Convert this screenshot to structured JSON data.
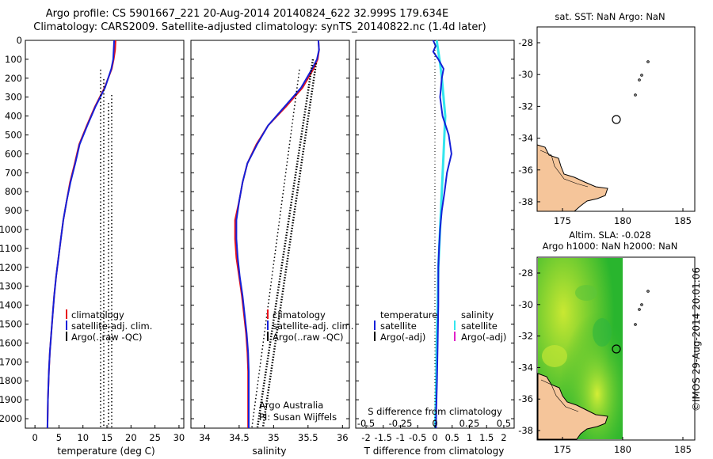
{
  "header": {
    "line1": "Argo profile: CS 5901667_221 20-Aug-2014 20140824_622 32.999S 179.634E",
    "line2": "Climatology: CARS2009. Satellite-adjusted climatology: synTS_20140822.nc (1.4d later)"
  },
  "colors": {
    "climatology": "#e8121b",
    "satellite": "#1520d8",
    "argo": "#000000",
    "sat_salinity": "#33e6ee",
    "argo_salinity_adj": "#e020c8",
    "land": "#f5c59a"
  },
  "y_axis": {
    "ticks": [
      "0",
      "100",
      "200",
      "300",
      "400",
      "500",
      "600",
      "700",
      "800",
      "900",
      "1000",
      "1100",
      "1200",
      "1300",
      "1400",
      "1500",
      "1600",
      "1700",
      "1800",
      "1900",
      "2000"
    ],
    "range": [
      0,
      2050
    ]
  },
  "panel1": {
    "xlabel": "temperature (deg C)",
    "xticks": [
      "0",
      "5",
      "10",
      "15",
      "20",
      "25",
      "30"
    ],
    "legend": [
      "climatology",
      "satellite-adj. clim.",
      "Argo(..raw -QC)"
    ]
  },
  "panel2": {
    "xlabel": "salinity",
    "xticks": [
      "34",
      "34.5",
      "35",
      "35.5",
      "36"
    ],
    "legend": [
      "climatology",
      "satellite-adj. clim.",
      "Argo(..raw -QC)"
    ],
    "credit1": "Argo Australia",
    "credit2": "PI: Susan Wijffels"
  },
  "panel3": {
    "xlabel": "T difference from climatology",
    "xticks": [
      "-2",
      "-1.5",
      "-1",
      "-0.5",
      "0",
      "0.5",
      "1",
      "1.5",
      "2"
    ],
    "top_label": "S difference from climatology",
    "top_ticks": [
      "-0.5",
      "-0.25",
      "0",
      "0.25",
      "0.5"
    ],
    "legend_t_title": "temperature",
    "legend_t": [
      "satellite",
      "Argo(-adj)"
    ],
    "legend_s_title": "salinity",
    "legend_s": [
      "satellite",
      "Argo(-adj)"
    ]
  },
  "map1": {
    "title": "sat. SST: NaN Argo: NaN",
    "yticks": [
      "-28",
      "-30",
      "-32",
      "-34",
      "-36",
      "-38"
    ],
    "xticks": [
      "175",
      "180",
      "185"
    ]
  },
  "map2": {
    "title1": "Altim. SLA: -0.028",
    "title2": "Argo h1000: NaN h2000: NaN",
    "yticks": [
      "-28",
      "-30",
      "-32",
      "-34",
      "-36",
      "-38"
    ],
    "xticks": [
      "175",
      "180",
      "185"
    ]
  },
  "watermark": "©IMOS 29-Aug-2014 20:01:06",
  "chart_data": [
    {
      "type": "line",
      "xlabel": "temperature (deg C)",
      "ylabel": "",
      "xlim": [
        -2,
        31
      ],
      "ylim": [
        2050,
        0
      ],
      "series": [
        {
          "name": "climatology",
          "x": [
            16.8,
            16.7,
            16.4,
            16.0,
            14.5,
            12.5,
            10.8,
            9.2,
            8.3,
            7.3,
            6.6,
            5.9,
            5.4,
            4.9,
            4.4,
            4.0,
            3.7,
            3.4,
            3.1,
            2.9,
            2.7,
            2.6
          ],
          "y": [
            0,
            50,
            100,
            150,
            250,
            350,
            450,
            550,
            650,
            750,
            850,
            950,
            1050,
            1150,
            1250,
            1350,
            1450,
            1550,
            1650,
            1750,
            1900,
            2050
          ]
        },
        {
          "name": "satellite-adj. clim.",
          "x": [
            16.5,
            16.4,
            16.3,
            15.9,
            14.6,
            12.6,
            10.9,
            9.3,
            8.4,
            7.4,
            6.6,
            5.9,
            5.4,
            4.9,
            4.4,
            4.0,
            3.7,
            3.4,
            3.1,
            2.9,
            2.7,
            2.6
          ],
          "y": [
            0,
            50,
            100,
            150,
            250,
            350,
            450,
            550,
            650,
            750,
            850,
            950,
            1050,
            1150,
            1250,
            1350,
            1450,
            1550,
            1650,
            1750,
            1900,
            2050
          ]
        },
        {
          "name": "Argo(..raw -QC)",
          "x": [
            14.8,
            15.4,
            16.0,
            16.7
          ],
          "y": [
            150,
            150,
            100,
            150
          ]
        }
      ]
    },
    {
      "type": "line",
      "xlabel": "salinity",
      "ylabel": "",
      "xlim": [
        33.8,
        36.1
      ],
      "ylim": [
        2050,
        0
      ],
      "series": [
        {
          "name": "climatology",
          "x": [
            35.65,
            35.66,
            35.64,
            35.58,
            35.42,
            35.18,
            34.92,
            34.75,
            34.62,
            34.55,
            34.5,
            34.44,
            34.44,
            34.46,
            34.5,
            34.54,
            34.57,
            34.6,
            34.62,
            34.63,
            34.63
          ],
          "y": [
            0,
            50,
            100,
            150,
            250,
            350,
            450,
            550,
            650,
            750,
            850,
            950,
            1050,
            1150,
            1250,
            1350,
            1450,
            1550,
            1650,
            1750,
            2050
          ]
        },
        {
          "name": "satellite-adj. clim.",
          "x": [
            35.65,
            35.66,
            35.63,
            35.56,
            35.4,
            35.16,
            34.92,
            34.76,
            34.62,
            34.55,
            34.5,
            34.46,
            34.46,
            34.48,
            34.51,
            34.55,
            34.58,
            34.61,
            34.63,
            34.64,
            34.64
          ],
          "y": [
            0,
            50,
            100,
            150,
            250,
            350,
            450,
            550,
            650,
            750,
            850,
            950,
            1050,
            1150,
            1250,
            1350,
            1450,
            1550,
            1650,
            1750,
            2050
          ]
        }
      ]
    },
    {
      "type": "line",
      "xlabel": "T difference from climatology",
      "ylabel": "",
      "xlim": [
        -2.3,
        2.3
      ],
      "ylim": [
        2050,
        0
      ],
      "series": [
        {
          "name": "satellite",
          "x": [
            -0.05,
            0.02,
            -0.05,
            0.1,
            0.25,
            0.2,
            0.15,
            0.22,
            0.4,
            0.48,
            0.35,
            0.28,
            0.2,
            0.15,
            0.12,
            0.1,
            0.1,
            0.08,
            0.06,
            0.04,
            0.03
          ],
          "y": [
            0,
            30,
            60,
            100,
            150,
            200,
            300,
            400,
            500,
            600,
            700,
            800,
            900,
            1000,
            1100,
            1200,
            1400,
            1600,
            1800,
            1950,
            2050
          ]
        },
        {
          "name": "satellite (salinity)",
          "x": [
            0.05,
            0.1,
            0.15,
            0.2,
            0.3,
            0.25,
            0.2,
            0.15,
            0.1,
            0.08,
            0.05,
            0.04,
            0.02,
            0.01
          ],
          "y": [
            0,
            60,
            120,
            200,
            400,
            600,
            800,
            1000,
            1200,
            1400,
            1600,
            1800,
            1950,
            2050
          ]
        }
      ]
    }
  ]
}
